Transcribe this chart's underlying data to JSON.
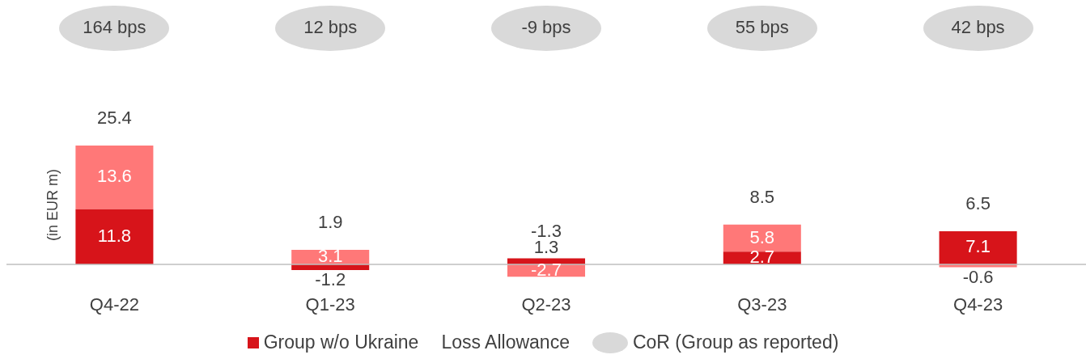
{
  "chart_data": {
    "type": "bar",
    "stacked": true,
    "ylabel": "(in EUR m)",
    "legend_title": "Loss Allowance",
    "legend": "bottom",
    "data_labels": true,
    "categories": [
      "Q4-22",
      "Q1-23",
      "Q2-23",
      "Q3-23",
      "Q4-23"
    ],
    "series": [
      {
        "name": "Group w/o Ukraine",
        "color": "#d7141a",
        "values": [
          11.8,
          -1.2,
          1.3,
          2.7,
          7.1
        ]
      },
      {
        "color": "#ff7878",
        "values": [
          13.6,
          3.1,
          -2.7,
          5.8,
          -0.6
        ]
      }
    ],
    "totals": [
      "25.4",
      "1.9",
      "-1.3",
      "8.5",
      "6.5"
    ],
    "annotations": [
      "164 bps",
      "12 bps",
      "-9 bps",
      "55 bps",
      "42 bps",
      "CoR (Group as reported)"
    ]
  }
}
